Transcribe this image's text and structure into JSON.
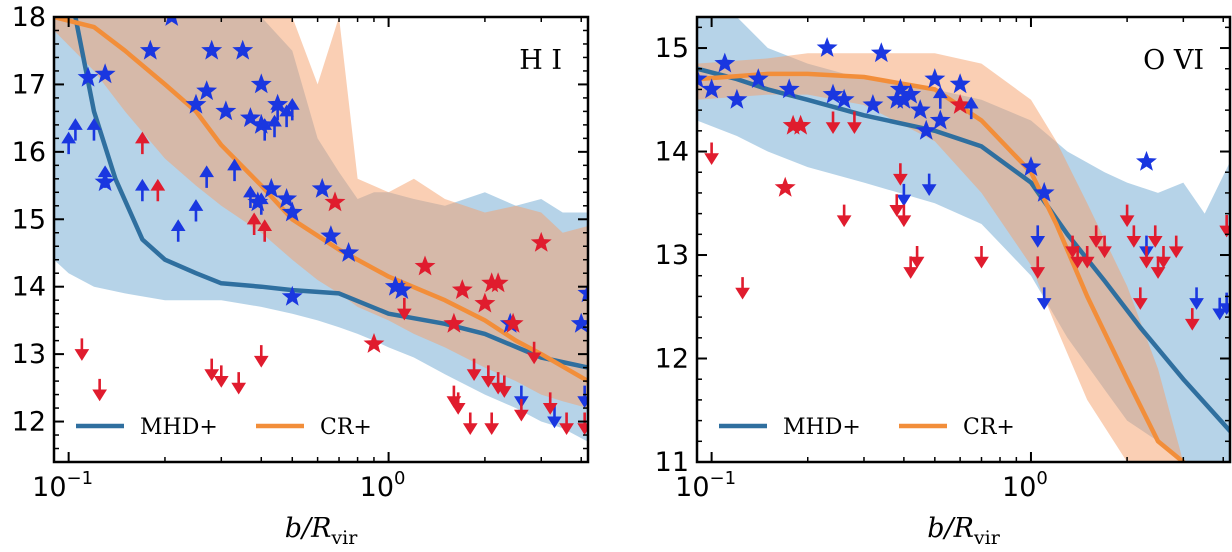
{
  "chart_data": [
    {
      "type": "scatter",
      "panel_label": "H I",
      "xlabel": "b/R_vir",
      "ylabel": "",
      "xscale": "log",
      "xlim": [
        0.09,
        4.2
      ],
      "ylim": [
        11.4,
        18.0
      ],
      "xticks": [
        {
          "v": 0.1,
          "base": "10",
          "exp": "−1"
        },
        {
          "v": 1.0,
          "base": "10",
          "exp": "0"
        }
      ],
      "yticks": [
        12,
        13,
        14,
        15,
        16,
        17,
        18
      ],
      "legend": {
        "position": "bottom",
        "entries": [
          {
            "name": "MHD+",
            "color": "#2f6f9f"
          },
          {
            "name": "CR+",
            "color": "#f28e3a"
          }
        ]
      },
      "colors": {
        "mhd": "#2f6f9f",
        "cr": "#f28e3a",
        "mhd_band": "#7aaed6",
        "cr_band": "#f5a06a",
        "blue_points": "#1a37e0",
        "red_points": "#e01c2e"
      },
      "series": [
        {
          "name": "MHD+",
          "kind": "median_line",
          "x": [
            0.105,
            0.12,
            0.14,
            0.17,
            0.2,
            0.25,
            0.3,
            0.4,
            0.5,
            0.7,
            1.0,
            1.5,
            2.0,
            3.0,
            4.2
          ],
          "y": [
            18.0,
            16.6,
            15.6,
            14.7,
            14.4,
            14.2,
            14.05,
            14.0,
            13.95,
            13.9,
            13.6,
            13.45,
            13.3,
            12.95,
            12.8
          ]
        },
        {
          "name": "MHD+ band",
          "kind": "band",
          "x": [
            0.09,
            0.1,
            0.12,
            0.15,
            0.2,
            0.3,
            0.4,
            0.5,
            0.6,
            0.7,
            0.8,
            0.9,
            1.0,
            1.2,
            1.5,
            2.0,
            2.5,
            3.0,
            3.5,
            4.2
          ],
          "y_upper": [
            18.0,
            18.0,
            18.0,
            18.0,
            18.0,
            18.0,
            18.0,
            17.5,
            16.2,
            15.7,
            15.3,
            15.4,
            15.4,
            15.3,
            15.2,
            15.4,
            15.2,
            15.3,
            15.1,
            15.1
          ],
          "y_lower": [
            14.4,
            14.2,
            14.0,
            13.9,
            13.8,
            13.8,
            13.7,
            13.6,
            13.5,
            13.4,
            13.3,
            13.2,
            13.1,
            12.95,
            12.7,
            12.4,
            12.2,
            12.0,
            11.9,
            11.7
          ]
        },
        {
          "name": "CR+",
          "kind": "median_line",
          "x": [
            0.09,
            0.12,
            0.15,
            0.2,
            0.25,
            0.3,
            0.4,
            0.5,
            0.7,
            1.0,
            1.5,
            2.0,
            2.5,
            3.0,
            4.2
          ],
          "y": [
            18.0,
            17.85,
            17.5,
            17.0,
            16.6,
            16.1,
            15.5,
            15.0,
            14.55,
            14.15,
            13.8,
            13.5,
            13.2,
            13.0,
            12.6
          ]
        },
        {
          "name": "CR+ band",
          "kind": "band",
          "x": [
            0.09,
            0.12,
            0.15,
            0.2,
            0.25,
            0.3,
            0.4,
            0.5,
            0.6,
            0.7,
            0.8,
            1.0,
            1.2,
            1.5,
            2.0,
            2.5,
            3.0,
            3.5,
            4.2
          ],
          "y_upper": [
            18.0,
            18.0,
            18.0,
            18.0,
            18.0,
            18.0,
            18.0,
            18.0,
            17.0,
            18.0,
            15.6,
            15.4,
            15.6,
            15.3,
            15.1,
            15.2,
            15.1,
            14.8,
            14.9
          ],
          "y_lower": [
            17.8,
            17.2,
            16.6,
            15.9,
            15.5,
            15.2,
            14.8,
            14.4,
            14.1,
            13.9,
            13.7,
            13.5,
            13.3,
            13.1,
            12.8,
            12.6,
            12.4,
            12.3,
            12.2
          ]
        },
        {
          "name": "MHD+ detections",
          "kind": "stars",
          "color": "#1a37e0",
          "x": [
            0.115,
            0.13,
            0.13,
            0.18,
            0.21,
            0.25,
            0.27,
            0.28,
            0.31,
            0.35,
            0.37,
            0.39,
            0.4,
            0.4,
            0.43,
            0.45,
            0.48,
            0.5,
            0.5,
            0.62,
            0.66,
            0.75,
            1.05,
            1.1,
            2.4,
            4.0,
            4.2
          ],
          "y": [
            17.1,
            17.15,
            15.55,
            17.5,
            18.0,
            16.7,
            16.9,
            17.5,
            16.6,
            17.5,
            16.5,
            15.25,
            17.0,
            16.4,
            15.45,
            16.7,
            15.3,
            15.1,
            13.85,
            15.45,
            14.75,
            14.5,
            14.0,
            13.95,
            13.45,
            13.45,
            13.9
          ]
        },
        {
          "name": "CR+ detections",
          "kind": "stars",
          "color": "#e01c2e",
          "x": [
            0.68,
            0.9,
            1.3,
            1.6,
            1.7,
            2.0,
            2.1,
            2.2,
            2.45,
            3.0
          ],
          "y": [
            15.25,
            13.15,
            14.3,
            13.45,
            13.95,
            13.75,
            14.05,
            14.05,
            13.45,
            14.65
          ]
        },
        {
          "name": "MHD+ lower limits",
          "kind": "up_arrows",
          "color": "#1a37e0",
          "x": [
            0.1,
            0.105,
            0.12,
            0.13,
            0.17,
            0.22,
            0.25,
            0.27,
            0.33,
            0.37,
            0.4,
            0.41,
            0.44,
            0.45,
            0.48,
            0.5
          ],
          "y": [
            16.1,
            16.3,
            16.3,
            15.6,
            15.4,
            14.8,
            15.1,
            15.6,
            15.7,
            15.3,
            15.2,
            16.3,
            16.35,
            16.6,
            16.5,
            16.6
          ]
        },
        {
          "name": "CR+ lower limits",
          "kind": "up_arrows",
          "color": "#e01c2e",
          "x": [
            0.17,
            0.19,
            0.38,
            0.41
          ],
          "y": [
            16.1,
            15.4,
            14.9,
            14.8
          ]
        },
        {
          "name": "MHD+ upper limits",
          "kind": "down_arrows",
          "color": "#1a37e0",
          "x": [
            2.6,
            3.3,
            4.1
          ],
          "y": [
            12.4,
            12.1,
            12.4
          ]
        },
        {
          "name": "CR+ upper limits",
          "kind": "down_arrows",
          "color": "#e01c2e",
          "x": [
            0.11,
            0.125,
            0.28,
            0.3,
            0.34,
            0.4,
            1.12,
            1.6,
            1.65,
            1.8,
            1.85,
            2.05,
            2.1,
            2.2,
            2.3,
            2.6,
            2.85,
            3.2,
            3.6,
            4.1
          ],
          "y": [
            13.1,
            12.5,
            12.8,
            12.7,
            12.6,
            13.0,
            13.7,
            12.4,
            12.3,
            12.0,
            12.8,
            12.7,
            12.0,
            12.6,
            12.55,
            12.2,
            13.05,
            12.3,
            12.0,
            12.0
          ]
        }
      ]
    },
    {
      "type": "scatter",
      "panel_label": "O VI",
      "xlabel": "b/R_vir",
      "ylabel": "",
      "xscale": "log",
      "xlim": [
        0.09,
        4.2
      ],
      "ylim": [
        11.0,
        15.3
      ],
      "xticks": [
        {
          "v": 0.1,
          "base": "10",
          "exp": "−1"
        },
        {
          "v": 1.0,
          "base": "10",
          "exp": "0"
        }
      ],
      "yticks": [
        11,
        12,
        13,
        14,
        15
      ],
      "legend": {
        "position": "bottom",
        "entries": [
          {
            "name": "MHD+",
            "color": "#2f6f9f"
          },
          {
            "name": "CR+",
            "color": "#f28e3a"
          }
        ]
      },
      "colors": {
        "mhd": "#2f6f9f",
        "cr": "#f28e3a",
        "mhd_band": "#7aaed6",
        "cr_band": "#f5a06a",
        "blue_points": "#1a37e0",
        "red_points": "#e01c2e"
      },
      "series": [
        {
          "name": "MHD+",
          "kind": "median_line",
          "x": [
            0.09,
            0.12,
            0.15,
            0.2,
            0.3,
            0.5,
            0.7,
            1.0,
            1.3,
            1.7,
            2.2,
            3.0,
            4.2
          ],
          "y": [
            14.8,
            14.7,
            14.6,
            14.5,
            14.35,
            14.2,
            14.05,
            13.7,
            13.2,
            12.75,
            12.3,
            11.8,
            11.3
          ]
        },
        {
          "name": "MHD+ band",
          "kind": "band",
          "x": [
            0.09,
            0.12,
            0.15,
            0.2,
            0.3,
            0.5,
            0.7,
            1.0,
            1.3,
            1.7,
            2.0,
            2.5,
            3.0,
            3.5,
            4.2
          ],
          "y_upper": [
            15.3,
            15.3,
            15.0,
            14.85,
            14.7,
            14.6,
            14.5,
            14.3,
            14.0,
            13.8,
            13.7,
            13.6,
            13.7,
            13.4,
            13.9
          ],
          "y_lower": [
            14.3,
            14.15,
            14.0,
            13.85,
            13.7,
            13.5,
            13.3,
            12.8,
            12.2,
            11.7,
            11.4,
            11.2,
            11.0,
            11.0,
            11.0
          ]
        },
        {
          "name": "CR+",
          "kind": "median_line",
          "x": [
            0.09,
            0.15,
            0.2,
            0.3,
            0.5,
            0.7,
            1.0,
            1.2,
            1.5,
            2.0,
            2.5,
            3.0
          ],
          "y": [
            14.7,
            14.75,
            14.75,
            14.72,
            14.6,
            14.3,
            13.8,
            13.3,
            12.6,
            11.8,
            11.2,
            11.0
          ]
        },
        {
          "name": "CR+ band",
          "kind": "band",
          "x": [
            0.09,
            0.15,
            0.2,
            0.3,
            0.5,
            0.7,
            1.0,
            1.2,
            1.5,
            2.0,
            2.5,
            3.0
          ],
          "y_upper": [
            14.85,
            14.9,
            14.95,
            14.95,
            14.95,
            14.85,
            14.5,
            14.1,
            13.5,
            12.7,
            11.9,
            11.0
          ],
          "y_lower": [
            14.5,
            14.55,
            14.55,
            14.45,
            14.1,
            13.6,
            12.9,
            12.3,
            11.6,
            11.0,
            11.0,
            11.0
          ]
        },
        {
          "name": "MHD+ detections",
          "kind": "stars",
          "color": "#1a37e0",
          "x": [
            0.09,
            0.1,
            0.11,
            0.12,
            0.14,
            0.175,
            0.23,
            0.24,
            0.26,
            0.32,
            0.34,
            0.38,
            0.39,
            0.4,
            0.42,
            0.45,
            0.47,
            0.5,
            0.52,
            0.6,
            1.0,
            1.1,
            2.3
          ],
          "y": [
            14.7,
            14.6,
            14.85,
            14.5,
            14.7,
            14.6,
            15.0,
            14.55,
            14.5,
            14.45,
            14.95,
            14.5,
            14.6,
            14.5,
            14.55,
            14.4,
            14.2,
            14.7,
            14.3,
            14.65,
            13.85,
            13.6,
            13.9
          ]
        },
        {
          "name": "CR+ detections",
          "kind": "stars",
          "color": "#e01c2e",
          "x": [
            0.17,
            0.18,
            0.19,
            0.6
          ],
          "y": [
            13.65,
            14.25,
            14.25,
            14.45
          ]
        },
        {
          "name": "MHD+ lower limits",
          "kind": "up_arrows",
          "color": "#1a37e0",
          "x": [
            0.52,
            0.65
          ],
          "y": [
            14.5,
            14.4
          ]
        },
        {
          "name": "MHD+ upper limits",
          "kind": "down_arrows",
          "color": "#1a37e0",
          "x": [
            0.4,
            0.48,
            1.05,
            1.1,
            2.3,
            3.3,
            3.9,
            4.1
          ],
          "y": [
            13.6,
            13.7,
            13.2,
            12.6,
            13.1,
            12.6,
            12.5,
            12.55
          ]
        },
        {
          "name": "CR+ upper limits",
          "kind": "down_arrows",
          "color": "#e01c2e",
          "x": [
            0.1,
            0.125,
            0.24,
            0.26,
            0.28,
            0.38,
            0.39,
            0.4,
            0.42,
            0.44,
            0.7,
            1.05,
            1.35,
            1.4,
            1.5,
            1.6,
            1.7,
            2.0,
            2.1,
            2.2,
            2.3,
            2.45,
            2.5,
            2.6,
            2.85,
            3.2,
            4.1
          ],
          "y": [
            14.0,
            12.7,
            14.3,
            13.4,
            14.3,
            13.5,
            13.8,
            13.4,
            12.9,
            13.0,
            13.0,
            12.9,
            13.1,
            13.0,
            13.0,
            13.2,
            13.1,
            13.4,
            13.2,
            12.6,
            13.0,
            13.2,
            12.9,
            13.0,
            13.1,
            12.4,
            13.3
          ]
        }
      ]
    }
  ]
}
